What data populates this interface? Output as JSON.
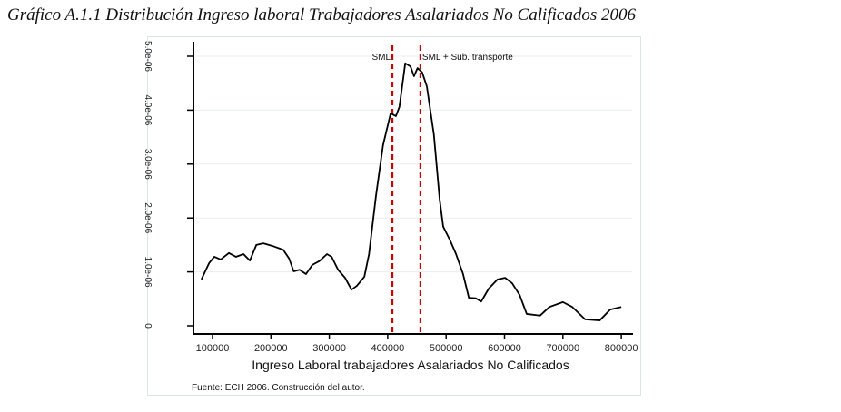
{
  "title": "Gráfico A.1.1 Distribución Ingreso laboral Trabajadores Asalariados No Calificados 2006",
  "chart_data": {
    "type": "line",
    "xlabel": "Ingreso Laboral trabajadores Asalariados No Calificados",
    "ylabel": "",
    "xlim": [
      66000,
      820000
    ],
    "ylim": [
      0,
      5e-06
    ],
    "xticks": [
      100000,
      200000,
      300000,
      400000,
      500000,
      600000,
      700000,
      800000
    ],
    "xtick_labels": [
      "100000",
      "200000",
      "300000",
      "400000",
      "500000",
      "600000",
      "700000",
      "800000"
    ],
    "yticks": [
      0,
      1e-06,
      2e-06,
      3e-06,
      4e-06,
      5e-06
    ],
    "ytick_labels": [
      "0",
      "1.0e-06",
      "2.0e-06",
      "3.0e-06",
      "4.0e-06",
      "5.0e-06"
    ],
    "grid": true,
    "series": [
      {
        "color": "#000000",
        "x": [
          81000,
          94000,
          103000,
          114000,
          128000,
          140000,
          153000,
          164000,
          175000,
          187000,
          203000,
          221000,
          231000,
          239000,
          249000,
          260000,
          271000,
          283000,
          296000,
          304000,
          315000,
          327000,
          338000,
          347000,
          360000,
          368000,
          380000,
          392000,
          405000,
          414000,
          420000,
          430000,
          439000,
          445000,
          451000,
          459000,
          467000,
          479000,
          489000,
          495000,
          507000,
          517000,
          529000,
          539000,
          551000,
          560000,
          573000,
          588000,
          601000,
          613000,
          626000,
          638000,
          661000,
          677000,
          700000,
          716000,
          738000,
          763000,
          781000,
          800000
        ],
        "y": [
          8.6e-07,
          1.16e-06,
          1.28e-06,
          1.23e-06,
          1.35e-06,
          1.28e-06,
          1.33e-06,
          1.21e-06,
          1.5e-06,
          1.53e-06,
          1.48e-06,
          1.41e-06,
          1.25e-06,
          1.01e-06,
          1.04e-06,
          9.6e-07,
          1.13e-06,
          1.2e-06,
          1.33e-06,
          1.28e-06,
          1.04e-06,
          8.9e-07,
          6.7e-07,
          7.4e-07,
          9.1e-07,
          1.33e-06,
          2.42e-06,
          3.35e-06,
          3.94e-06,
          3.89e-06,
          4.06e-06,
          4.87e-06,
          4.81e-06,
          4.63e-06,
          4.78e-06,
          4.7e-06,
          4.44e-06,
          3.55e-06,
          2.34e-06,
          1.84e-06,
          1.58e-06,
          1.33e-06,
          9.6e-07,
          5.2e-07,
          5.1e-07,
          4.5e-07,
          6.9e-07,
          8.6e-07,
          8.9e-07,
          7.9e-07,
          5.7e-07,
          2.2e-07,
          1.9e-07,
          3.5e-07,
          4.4e-07,
          3.5e-07,
          1.2e-07,
          1e-07,
          3e-07,
          3.5e-07
        ]
      }
    ],
    "reference_lines": [
      {
        "x": 408000,
        "label": "SML",
        "color": "#cc0000"
      },
      {
        "x": 456000,
        "label": "SML + Sub. transporte",
        "color": "#cc0000"
      }
    ],
    "note": "Fuente: ECH 2006. Construcción del autor."
  }
}
